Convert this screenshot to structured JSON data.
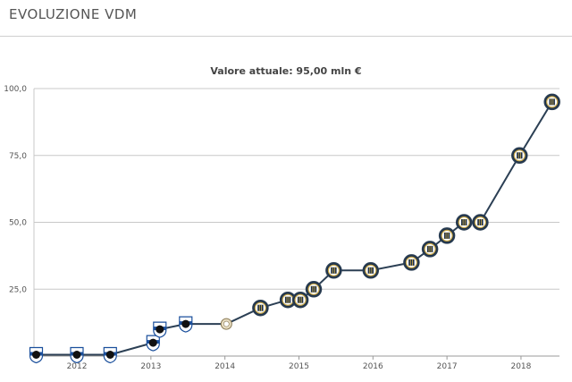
{
  "header": {
    "title": "EVOLUZIONE VDM"
  },
  "chart_data": {
    "type": "line",
    "title": "Valore attuale: 95,00 mln €",
    "xlabel": "",
    "ylabel": "",
    "ylim": [
      0,
      100
    ],
    "xlim": [
      2011.42,
      2018.52
    ],
    "yticks": [
      "100,0",
      "75,0",
      "50,0",
      "25,0"
    ],
    "ytick_values": [
      100,
      75,
      50,
      25
    ],
    "xticks": [
      "2012",
      "2013",
      "2014",
      "2015",
      "2016",
      "2017",
      "2018"
    ],
    "xtick_values": [
      2012,
      2013,
      2014,
      2015,
      2016,
      2017,
      2018
    ],
    "grid": true,
    "series": [
      {
        "line_color": "#2b3f54",
        "points": [
          {
            "x": 2011.45,
            "y": 0.5,
            "club": "sampdoria"
          },
          {
            "x": 2012.0,
            "y": 0.5,
            "club": "sampdoria"
          },
          {
            "x": 2012.45,
            "y": 0.5,
            "club": "sampdoria"
          },
          {
            "x": 2013.03,
            "y": 5,
            "club": "sampdoria"
          },
          {
            "x": 2013.12,
            "y": 10,
            "club": "sampdoria"
          },
          {
            "x": 2013.47,
            "y": 12,
            "club": "sampdoria"
          },
          {
            "x": 2014.02,
            "y": 12,
            "club": "other"
          },
          {
            "x": 2014.48,
            "y": 18,
            "club": "inter"
          },
          {
            "x": 2014.85,
            "y": 21,
            "club": "inter"
          },
          {
            "x": 2015.02,
            "y": 21,
            "club": "inter"
          },
          {
            "x": 2015.2,
            "y": 25,
            "club": "inter"
          },
          {
            "x": 2015.47,
            "y": 32,
            "club": "inter"
          },
          {
            "x": 2015.97,
            "y": 32,
            "club": "inter"
          },
          {
            "x": 2016.52,
            "y": 35,
            "club": "inter"
          },
          {
            "x": 2016.77,
            "y": 40,
            "club": "inter"
          },
          {
            "x": 2017.0,
            "y": 45,
            "club": "inter"
          },
          {
            "x": 2017.23,
            "y": 50,
            "club": "inter"
          },
          {
            "x": 2017.45,
            "y": 50,
            "club": "inter"
          },
          {
            "x": 2017.98,
            "y": 75,
            "club": "inter"
          },
          {
            "x": 2018.42,
            "y": 95,
            "club": "inter"
          }
        ]
      }
    ]
  },
  "colors": {
    "line": "#2b3f54",
    "grid": "#c8c8c8",
    "inter_blue": "#1d2f47",
    "inter_gold": "#c8a84a",
    "sampdoria_blue": "#1a4f9c",
    "other_fill": "#e7dcc0"
  }
}
